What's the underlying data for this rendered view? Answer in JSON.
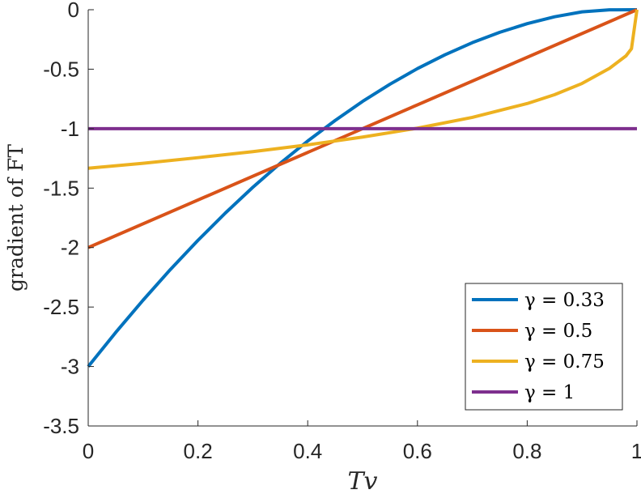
{
  "chart_data": {
    "type": "line",
    "title": "",
    "xlabel": "Tv",
    "ylabel": "gradient of FT",
    "xlim": [
      0,
      1
    ],
    "ylim": [
      -3.5,
      0
    ],
    "xticks": [
      "0",
      "0.2",
      "0.4",
      "0.6",
      "0.8",
      "1"
    ],
    "yticks": [
      "0",
      "-0.5",
      "-1",
      "-1.5",
      "-2",
      "-2.5",
      "-3",
      "-3.5"
    ],
    "grid": false,
    "legend_position": "bottom-right",
    "series": [
      {
        "name": "γ = 0.33",
        "color": "#0072BD",
        "x": [
          0,
          0.05,
          0.1,
          0.15,
          0.2,
          0.25,
          0.3,
          0.35,
          0.4,
          0.45,
          0.5,
          0.55,
          0.6,
          0.65,
          0.7,
          0.75,
          0.8,
          0.85,
          0.9,
          0.95,
          1.0
        ],
        "y": [
          -3.0,
          -2.714,
          -2.442,
          -2.183,
          -1.939,
          -1.709,
          -1.493,
          -1.291,
          -1.104,
          -0.931,
          -0.771,
          -0.626,
          -0.495,
          -0.379,
          -0.277,
          -0.19,
          -0.117,
          -0.059,
          -0.018,
          -0.001,
          0
        ]
      },
      {
        "name": "γ = 0.5",
        "color": "#D95319",
        "x": [
          0,
          1
        ],
        "y": [
          -2,
          0
        ]
      },
      {
        "name": "γ = 0.75",
        "color": "#EDB120",
        "x": [
          0,
          0.1,
          0.2,
          0.3,
          0.4,
          0.5,
          0.6,
          0.7,
          0.8,
          0.85,
          0.9,
          0.95,
          0.98,
          0.99,
          1.0
        ],
        "y": [
          -1.333,
          -1.291,
          -1.244,
          -1.193,
          -1.136,
          -1.071,
          -0.996,
          -0.905,
          -0.789,
          -0.714,
          -0.62,
          -0.493,
          -0.388,
          -0.328,
          0
        ]
      },
      {
        "name": "γ = 1",
        "color": "#7E2F8E",
        "x": [
          0,
          1
        ],
        "y": [
          -1,
          -1
        ]
      }
    ]
  }
}
